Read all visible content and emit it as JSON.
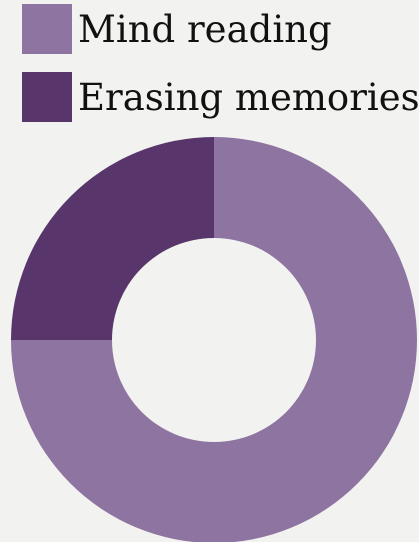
{
  "chart_data": {
    "type": "pie",
    "donut": true,
    "categories": [
      "Mind reading",
      "Erasing memories"
    ],
    "values": [
      75,
      25
    ],
    "colors": [
      "#8e74a0",
      "#58356a"
    ],
    "legend": "top-left"
  },
  "legend": {
    "items": [
      {
        "label": "Mind reading",
        "color": "#8e74a0"
      },
      {
        "label": "Erasing memories",
        "color": "#58356a"
      }
    ]
  }
}
